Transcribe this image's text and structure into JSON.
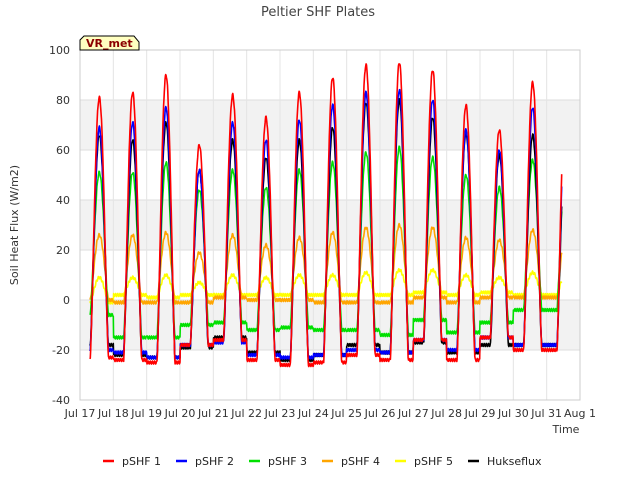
{
  "chart_data": {
    "type": "line",
    "title": "Peltier SHF Plates",
    "xlabel": "Time",
    "ylabel": "Soil Heat Flux (W/m2)",
    "badge": "VR_met",
    "ylim": [
      -40,
      100
    ],
    "yticks": [
      -40,
      -20,
      0,
      20,
      40,
      60,
      80,
      100
    ],
    "xlim": [
      17,
      32
    ],
    "xticks": [
      {
        "value": 17,
        "label": "Jul 17"
      },
      {
        "value": 18,
        "label": "Jul 18"
      },
      {
        "value": 19,
        "label": "Jul 19"
      },
      {
        "value": 20,
        "label": "Jul 20"
      },
      {
        "value": 21,
        "label": "Jul 21"
      },
      {
        "value": 22,
        "label": "Jul 22"
      },
      {
        "value": 23,
        "label": "Jul 23"
      },
      {
        "value": 24,
        "label": "Jul 24"
      },
      {
        "value": 25,
        "label": "Jul 25"
      },
      {
        "value": 26,
        "label": "Jul 26"
      },
      {
        "value": 27,
        "label": "Jul 27"
      },
      {
        "value": 28,
        "label": "Jul 28"
      },
      {
        "value": 29,
        "label": "Jul 29"
      },
      {
        "value": 30,
        "label": "Jul 30"
      },
      {
        "value": 31,
        "label": "Jul 31"
      },
      {
        "value": 32,
        "label": "Aug 1"
      }
    ],
    "series_style": {
      "x_start": 17.3,
      "x_end": 31.45,
      "peak_hour_fraction": 0.58
    },
    "series": [
      {
        "name": "pSHF 1",
        "color": "#ff0000",
        "daily_peaks": [
          81,
          83,
          90,
          62,
          82,
          73,
          83,
          89,
          94,
          95,
          92,
          78,
          68,
          87
        ],
        "daily_troughs": [
          -23,
          -24,
          -25,
          -18,
          -16,
          -24,
          -26,
          -25,
          -22,
          -24,
          -16,
          -24,
          -15,
          -20
        ]
      },
      {
        "name": "pSHF 2",
        "color": "#0000ff",
        "daily_peaks": [
          69,
          71,
          77,
          52,
          71,
          64,
          72,
          78,
          83,
          84,
          80,
          68,
          60,
          77
        ],
        "daily_troughs": [
          -20,
          -21,
          -23,
          -18,
          -17,
          -22,
          -23,
          -22,
          -20,
          -21,
          -16,
          -20,
          -15,
          -18
        ]
      },
      {
        "name": "pSHF 3",
        "color": "#00e000",
        "daily_peaks": [
          51,
          51,
          55,
          44,
          52,
          45,
          52,
          55,
          59,
          61,
          57,
          50,
          45,
          56
        ],
        "daily_troughs": [
          -6,
          -15,
          -15,
          -10,
          -9,
          -12,
          -11,
          -12,
          -12,
          -14,
          -8,
          -13,
          -9,
          -4
        ]
      },
      {
        "name": "pSHF 4",
        "color": "#ffa500",
        "daily_peaks": [
          26,
          26,
          27,
          19,
          26,
          22,
          25,
          27,
          29,
          30,
          29,
          25,
          24,
          28
        ],
        "daily_troughs": [
          0,
          -1,
          -1,
          -1,
          1,
          0,
          0,
          -1,
          -1,
          -1,
          1,
          -1,
          1,
          1
        ]
      },
      {
        "name": "pSHF 5",
        "color": "#ffff00",
        "daily_peaks": [
          9,
          9,
          10,
          7,
          10,
          9,
          10,
          10,
          11,
          12,
          12,
          10,
          9,
          11
        ],
        "daily_troughs": [
          -1,
          2,
          1,
          2,
          2,
          2,
          2,
          2,
          2,
          2,
          3,
          2,
          3,
          2
        ]
      },
      {
        "name": "Hukseflux",
        "color": "#000000",
        "daily_peaks": [
          66,
          64,
          71,
          52,
          64,
          57,
          64,
          69,
          79,
          80,
          73,
          67,
          58,
          66
        ],
        "daily_troughs": [
          -18,
          -22,
          -23,
          -19,
          -15,
          -21,
          -24,
          -22,
          -18,
          -21,
          -17,
          -21,
          -18,
          -18
        ]
      }
    ]
  }
}
